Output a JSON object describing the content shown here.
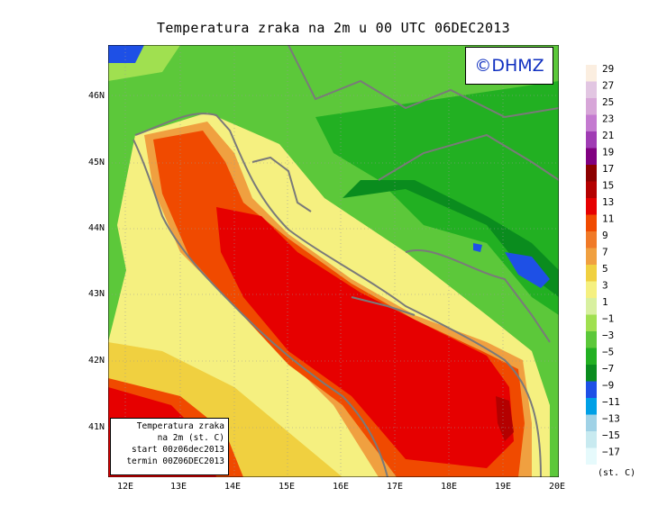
{
  "title": "Temperatura zraka na 2m u 00 UTC 06DEC2013",
  "copyright": "©DHMZ",
  "lat_labels": [
    "46N",
    "45N",
    "44N",
    "43N",
    "42N",
    "41N"
  ],
  "lon_labels": [
    "12E",
    "13E",
    "14E",
    "15E",
    "16E",
    "17E",
    "18E",
    "19E",
    "20E"
  ],
  "legend": {
    "labels": [
      "29",
      "27",
      "25",
      "23",
      "21",
      "19",
      "17",
      "15",
      "13",
      "11",
      "9",
      "7",
      "5",
      "3",
      "1",
      "−1",
      "−3",
      "−5",
      "−7",
      "−9",
      "−11",
      "−13",
      "−15",
      "−17"
    ],
    "colors": [
      "#fbeee0",
      "#e2c6e2",
      "#d7a6d8",
      "#c47ad0",
      "#a03cb4",
      "#800080",
      "#8c0000",
      "#b40000",
      "#e60000",
      "#f04a00",
      "#f07a28",
      "#f0a040",
      "#f0d040",
      "#f5f080",
      "#d8f0a0",
      "#a0e050",
      "#5cc83a",
      "#22b022",
      "#0a8c1e",
      "#1e50e6",
      "#00a0e6",
      "#a0d2e6",
      "#c8eaf0",
      "#e6fafc"
    ],
    "unit": "(st. C)"
  },
  "info_box": {
    "line1": "Temperatura zraka",
    "line2": "na 2m (st. C)",
    "line3": "start 00z06dec2013",
    "line4": "termin 00Z06DEC2013"
  },
  "colors": {
    "sea_warm": "#e60000",
    "sea_mid": "#f04a00",
    "coast": "#f0d040",
    "land_green": "#5cc83a",
    "land_dark": "#22b022",
    "cold_blue": "#1e50e6",
    "border": "#7a7a7a"
  }
}
